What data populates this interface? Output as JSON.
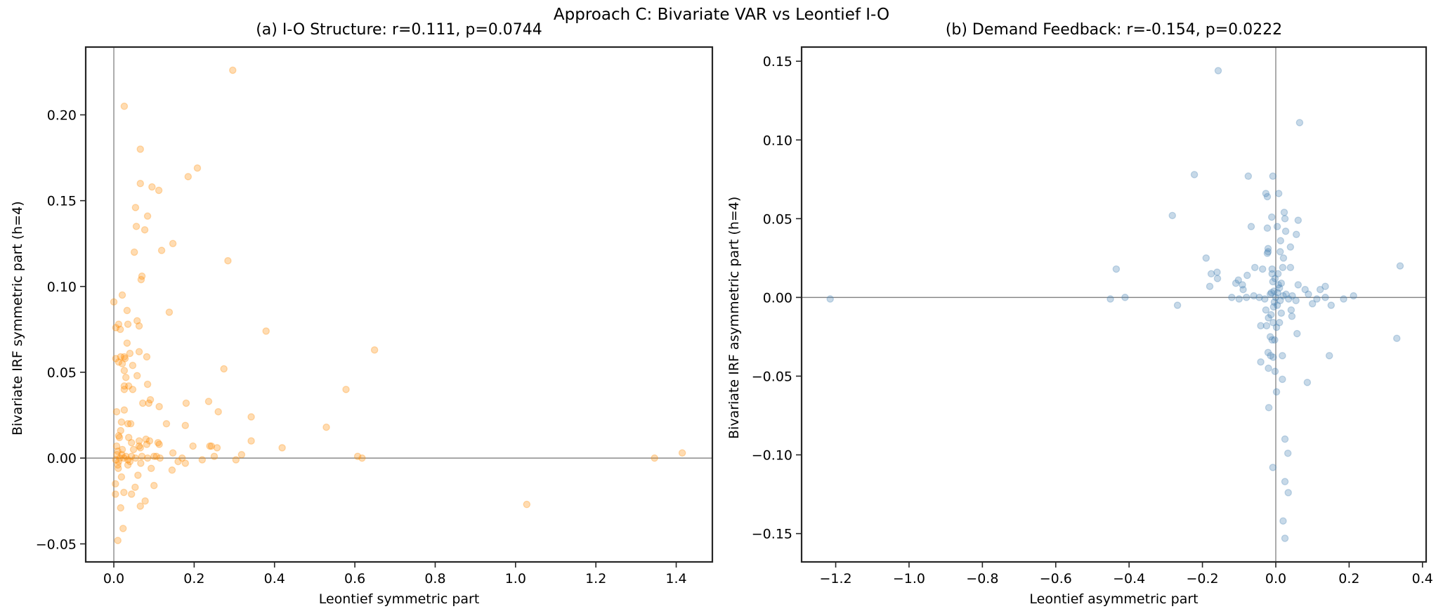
{
  "figure": {
    "suptitle": "Approach C: Bivariate VAR vs Leontief I-O"
  },
  "panels": [
    {
      "title": "(a) I-O Structure: r=0.111, p=0.0744",
      "xlabel": "Leontief symmetric part",
      "ylabel": "Bivariate IRF symmetric part (h=4)",
      "color": "#ff8c00"
    },
    {
      "title": "(b) Demand Feedback: r=-0.154, p=0.0222",
      "xlabel": "Leontief asymmetric part",
      "ylabel": "Bivariate IRF asymmetric part (h=4)",
      "color": "#4682b4"
    }
  ],
  "chart_data": [
    {
      "type": "scatter",
      "title": "(a) I-O Structure: r=0.111, p=0.0744",
      "suptitle": "Approach C: Bivariate VAR vs Leontief I-O",
      "xlabel": "Leontief symmetric part",
      "ylabel": "Bivariate IRF symmetric part (h=4)",
      "xlim": [
        -0.07,
        1.49
      ],
      "ylim": [
        -0.0605,
        0.2395
      ],
      "xticks": [
        0.0,
        0.2,
        0.4,
        0.6,
        0.8,
        1.0,
        1.2,
        1.4
      ],
      "xticklabels": [
        "0.0",
        "0.2",
        "0.4",
        "0.6",
        "0.8",
        "1.0",
        "1.2",
        "1.4"
      ],
      "yticks": [
        -0.05,
        0.0,
        0.05,
        0.1,
        0.15,
        0.2
      ],
      "yticklabels": [
        "−0.05",
        "0.00",
        "0.05",
        "0.10",
        "0.15",
        "0.20"
      ],
      "reference_lines": {
        "x": 0,
        "y": 0
      },
      "grid": false,
      "legend": null,
      "marker_color": "#ff8c00",
      "marker_alpha": 0.3,
      "stats": {
        "r": 0.111,
        "p": 0.0744
      },
      "points": [
        [
          0.296,
          0.226
        ],
        [
          0.026,
          0.205
        ],
        [
          0.066,
          0.18
        ],
        [
          0.208,
          0.169
        ],
        [
          0.185,
          0.164
        ],
        [
          0.066,
          0.16
        ],
        [
          0.095,
          0.158
        ],
        [
          0.112,
          0.156
        ],
        [
          0.054,
          0.146
        ],
        [
          0.084,
          0.141
        ],
        [
          0.056,
          0.135
        ],
        [
          0.077,
          0.133
        ],
        [
          0.147,
          0.125
        ],
        [
          0.119,
          0.121
        ],
        [
          0.051,
          0.12
        ],
        [
          0.284,
          0.115
        ],
        [
          0.07,
          0.106
        ],
        [
          0.068,
          0.104
        ],
        [
          0.021,
          0.095
        ],
        [
          0.0,
          0.091
        ],
        [
          0.033,
          0.086
        ],
        [
          0.138,
          0.085
        ],
        [
          0.058,
          0.08
        ],
        [
          0.012,
          0.078
        ],
        [
          0.005,
          0.076
        ],
        [
          0.016,
          0.075
        ],
        [
          0.035,
          0.078
        ],
        [
          0.063,
          0.077
        ],
        [
          0.379,
          0.074
        ],
        [
          0.033,
          0.067
        ],
        [
          0.649,
          0.063
        ],
        [
          0.063,
          0.062
        ],
        [
          0.04,
          0.061
        ],
        [
          0.082,
          0.059
        ],
        [
          0.005,
          0.058
        ],
        [
          0.012,
          0.056
        ],
        [
          0.017,
          0.059
        ],
        [
          0.026,
          0.059
        ],
        [
          0.028,
          0.058
        ],
        [
          0.021,
          0.055
        ],
        [
          0.047,
          0.054
        ],
        [
          0.274,
          0.052
        ],
        [
          0.026,
          0.051
        ],
        [
          0.03,
          0.047
        ],
        [
          0.058,
          0.048
        ],
        [
          0.084,
          0.043
        ],
        [
          0.026,
          0.042
        ],
        [
          0.026,
          0.04
        ],
        [
          0.037,
          0.042
        ],
        [
          0.047,
          0.04
        ],
        [
          0.578,
          0.04
        ],
        [
          0.236,
          0.033
        ],
        [
          0.072,
          0.032
        ],
        [
          0.087,
          0.032
        ],
        [
          0.091,
          0.034
        ],
        [
          0.113,
          0.03
        ],
        [
          0.18,
          0.032
        ],
        [
          0.007,
          0.027
        ],
        [
          0.026,
          0.028
        ],
        [
          0.26,
          0.027
        ],
        [
          0.342,
          0.024
        ],
        [
          0.019,
          0.021
        ],
        [
          0.035,
          0.02
        ],
        [
          0.042,
          0.02
        ],
        [
          0.131,
          0.02
        ],
        [
          0.178,
          0.019
        ],
        [
          0.529,
          0.018
        ],
        [
          0.017,
          0.016
        ],
        [
          0.012,
          0.013
        ],
        [
          0.014,
          0.012
        ],
        [
          0.037,
          0.012
        ],
        [
          0.08,
          0.011
        ],
        [
          0.089,
          0.01
        ],
        [
          0.063,
          0.01
        ],
        [
          0.342,
          0.01
        ],
        [
          0.044,
          0.009
        ],
        [
          0.11,
          0.009
        ],
        [
          0.082,
          0.008
        ],
        [
          0.113,
          0.008
        ],
        [
          0.007,
          0.007
        ],
        [
          0.063,
          0.007
        ],
        [
          0.197,
          0.007
        ],
        [
          0.239,
          0.007
        ],
        [
          0.243,
          0.007
        ],
        [
          0.066,
          0.006
        ],
        [
          0.257,
          0.006
        ],
        [
          0.419,
          0.006
        ],
        [
          0.021,
          0.005
        ],
        [
          0.049,
          0.005
        ],
        [
          0.01,
          0.004
        ],
        [
          0.147,
          0.003
        ],
        [
          0.318,
          0.002
        ],
        [
          0.008,
          0.002
        ],
        [
          0.02,
          0.002
        ],
        [
          0.03,
          0.001
        ],
        [
          0.1,
          0.001
        ],
        [
          0.106,
          0.001
        ],
        [
          0.07,
          0.001
        ],
        [
          0.044,
          0.001
        ],
        [
          0.25,
          0.001
        ],
        [
          0.607,
          0.001
        ],
        [
          0.115,
          0.0
        ],
        [
          0.084,
          0.0
        ],
        [
          0.054,
          0.0
        ],
        [
          0.17,
          0.0
        ],
        [
          0.618,
          0.0
        ],
        [
          0.015,
          0.0
        ],
        [
          0.025,
          0.0
        ],
        [
          0.035,
          -0.001
        ],
        [
          0.005,
          -0.001
        ],
        [
          0.012,
          -0.002
        ],
        [
          0.04,
          -0.002
        ],
        [
          0.16,
          -0.002
        ],
        [
          0.22,
          -0.001
        ],
        [
          0.304,
          -0.001
        ],
        [
          0.178,
          -0.003
        ],
        [
          0.067,
          -0.003
        ],
        [
          0.035,
          -0.004
        ],
        [
          0.01,
          -0.004
        ],
        [
          0.011,
          -0.006
        ],
        [
          0.093,
          -0.006
        ],
        [
          0.145,
          -0.007
        ],
        [
          0.06,
          -0.01
        ],
        [
          0.019,
          -0.011
        ],
        [
          0.004,
          -0.015
        ],
        [
          0.1,
          -0.016
        ],
        [
          0.053,
          -0.017
        ],
        [
          0.025,
          -0.02
        ],
        [
          0.004,
          -0.021
        ],
        [
          0.044,
          -0.021
        ],
        [
          0.078,
          -0.025
        ],
        [
          0.066,
          -0.028
        ],
        [
          0.017,
          -0.029
        ],
        [
          1.028,
          -0.027
        ],
        [
          0.023,
          -0.041
        ],
        [
          0.01,
          -0.048
        ],
        [
          1.346,
          0.0
        ],
        [
          1.415,
          0.003
        ]
      ]
    },
    {
      "type": "scatter",
      "title": "(b) Demand Feedback: r=-0.154, p=0.0222",
      "suptitle": "Approach C: Bivariate VAR vs Leontief I-O",
      "xlabel": "Leontief asymmetric part",
      "ylabel": "Bivariate IRF asymmetric part (h=4)",
      "xlim": [
        -1.293,
        0.41
      ],
      "ylim": [
        -0.168,
        0.159
      ],
      "xticks": [
        -1.2,
        -1.0,
        -0.8,
        -0.6,
        -0.4,
        -0.2,
        0.0,
        0.2,
        0.4
      ],
      "xticklabels": [
        "−1.2",
        "−1.0",
        "−0.8",
        "−0.6",
        "−0.4",
        "−0.2",
        "0.0",
        "0.2",
        "0.4"
      ],
      "yticks": [
        -0.15,
        -0.1,
        -0.05,
        0.0,
        0.05,
        0.1,
        0.15
      ],
      "yticklabels": [
        "−0.15",
        "−0.10",
        "−0.05",
        "0.00",
        "0.05",
        "0.10",
        "0.15"
      ],
      "reference_lines": {
        "x": 0,
        "y": 0
      },
      "grid": false,
      "legend": null,
      "marker_color": "#4682b4",
      "marker_alpha": 0.3,
      "stats": {
        "r": -0.154,
        "p": 0.0222
      },
      "points": [
        [
          -0.157,
          0.144
        ],
        [
          0.065,
          0.111
        ],
        [
          -0.222,
          0.078
        ],
        [
          -0.075,
          0.077
        ],
        [
          -0.008,
          0.077
        ],
        [
          -0.027,
          0.066
        ],
        [
          -0.023,
          0.064
        ],
        [
          0.008,
          0.066
        ],
        [
          -0.282,
          0.052
        ],
        [
          0.023,
          0.054
        ],
        [
          0.025,
          0.05
        ],
        [
          -0.011,
          0.051
        ],
        [
          0.061,
          0.049
        ],
        [
          -0.067,
          0.045
        ],
        [
          -0.023,
          0.044
        ],
        [
          0.004,
          0.045
        ],
        [
          0.027,
          0.042
        ],
        [
          0.056,
          0.04
        ],
        [
          0.013,
          0.036
        ],
        [
          -0.021,
          0.031
        ],
        [
          -0.021,
          0.029
        ],
        [
          -0.023,
          0.028
        ],
        [
          0.04,
          0.032
        ],
        [
          0.012,
          0.029
        ],
        [
          0.021,
          0.025
        ],
        [
          -0.19,
          0.025
        ],
        [
          -0.435,
          0.018
        ],
        [
          0.339,
          0.02
        ],
        [
          -0.057,
          0.019
        ],
        [
          -0.036,
          0.018
        ],
        [
          -0.01,
          0.018
        ],
        [
          0.019,
          0.019
        ],
        [
          0.04,
          0.019
        ],
        [
          -0.176,
          0.015
        ],
        [
          -0.16,
          0.016
        ],
        [
          -0.159,
          0.012
        ],
        [
          -0.078,
          0.014
        ],
        [
          -0.01,
          0.015
        ],
        [
          0.006,
          0.015
        ],
        [
          -0.102,
          0.011
        ],
        [
          -0.109,
          0.009
        ],
        [
          -0.091,
          0.008
        ],
        [
          -0.089,
          0.005
        ],
        [
          -0.18,
          0.007
        ],
        [
          0.061,
          0.008
        ],
        [
          0.08,
          0.005
        ],
        [
          0.089,
          0.002
        ],
        [
          0.121,
          0.005
        ],
        [
          0.135,
          0.007
        ],
        [
          0.112,
          -0.001
        ],
        [
          0.135,
          0.0
        ],
        [
          0.185,
          -0.001
        ],
        [
          0.212,
          0.001
        ],
        [
          -0.411,
          0.0
        ],
        [
          -0.451,
          -0.001
        ],
        [
          0.1,
          -0.004
        ],
        [
          0.151,
          -0.005
        ],
        [
          -0.268,
          -0.005
        ],
        [
          -1.215,
          -0.001
        ],
        [
          -0.12,
          0.0
        ],
        [
          -0.1,
          -0.001
        ],
        [
          -0.08,
          0.0
        ],
        [
          -0.06,
          0.001
        ],
        [
          -0.045,
          0.0
        ],
        [
          -0.03,
          -0.001
        ],
        [
          -0.015,
          0.002
        ],
        [
          -0.005,
          0.004
        ],
        [
          0.0,
          0.0
        ],
        [
          0.005,
          0.003
        ],
        [
          0.01,
          0.006
        ],
        [
          0.015,
          0.009
        ],
        [
          0.02,
          0.001
        ],
        [
          0.028,
          0.002
        ],
        [
          0.035,
          -0.001
        ],
        [
          0.045,
          0.001
        ],
        [
          0.055,
          -0.002
        ],
        [
          -0.008,
          0.01
        ],
        [
          -0.004,
          -0.003
        ],
        [
          0.004,
          -0.005
        ],
        [
          -0.012,
          0.003
        ],
        [
          0.012,
          -0.002
        ],
        [
          -0.002,
          0.012
        ],
        [
          0.007,
          0.008
        ],
        [
          -0.006,
          -0.006
        ],
        [
          -0.027,
          -0.008
        ],
        [
          0.042,
          -0.008
        ],
        [
          0.015,
          -0.01
        ],
        [
          0.044,
          -0.012
        ],
        [
          -0.02,
          -0.013
        ],
        [
          -0.013,
          -0.011
        ],
        [
          -0.007,
          -0.016
        ],
        [
          0.01,
          -0.016
        ],
        [
          -0.041,
          -0.018
        ],
        [
          -0.025,
          -0.018
        ],
        [
          0.002,
          -0.019
        ],
        [
          0.058,
          -0.023
        ],
        [
          -0.015,
          -0.025
        ],
        [
          -0.01,
          -0.027
        ],
        [
          -0.003,
          -0.027
        ],
        [
          0.33,
          -0.026
        ],
        [
          -0.021,
          -0.035
        ],
        [
          -0.014,
          -0.037
        ],
        [
          -0.007,
          -0.038
        ],
        [
          0.018,
          -0.037
        ],
        [
          0.146,
          -0.037
        ],
        [
          -0.041,
          -0.041
        ],
        [
          -0.02,
          -0.045
        ],
        [
          -0.002,
          -0.047
        ],
        [
          0.018,
          -0.052
        ],
        [
          0.086,
          -0.054
        ],
        [
          0.002,
          -0.06
        ],
        [
          -0.019,
          -0.07
        ],
        [
          0.025,
          -0.09
        ],
        [
          0.033,
          -0.099
        ],
        [
          -0.008,
          -0.108
        ],
        [
          0.025,
          -0.117
        ],
        [
          0.034,
          -0.124
        ],
        [
          0.02,
          -0.142
        ],
        [
          0.025,
          -0.153
        ]
      ]
    }
  ]
}
